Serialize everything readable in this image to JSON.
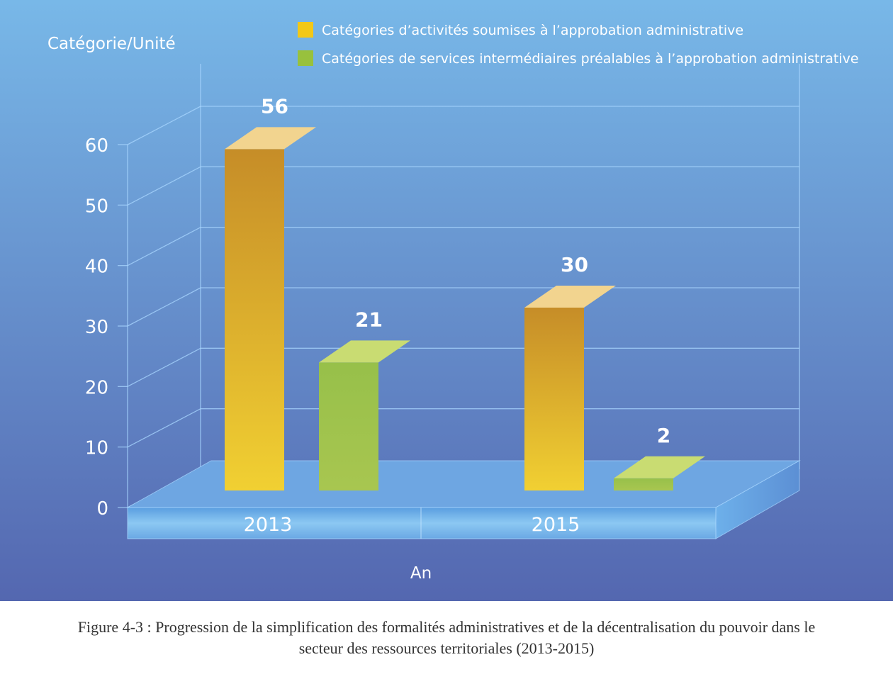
{
  "chart_data": {
    "type": "bar",
    "ylabel": "Catégorie/Unité",
    "xlabel": "An",
    "categories": [
      "2013",
      "2015"
    ],
    "ylim": [
      0,
      60
    ],
    "yticks": [
      0,
      10,
      20,
      30,
      40,
      50,
      60
    ],
    "grid": true,
    "legend_position": "top-right",
    "series": [
      {
        "name": "Catégories d’activités soumises à l’approbation administrative",
        "values": [
          56,
          30
        ],
        "color": "#e8c32c"
      },
      {
        "name": "Catégories de services intermédiaires préalables à l’approbation administrative",
        "values": [
          21,
          2
        ],
        "color": "#a3c24c"
      }
    ]
  },
  "caption": {
    "line1": "Figure 4-3 : Progression de la simplification des formalités administratives et de la décentralisation du pouvoir dans le",
    "line2": "secteur des ressources territoriales (2013-2015)"
  }
}
